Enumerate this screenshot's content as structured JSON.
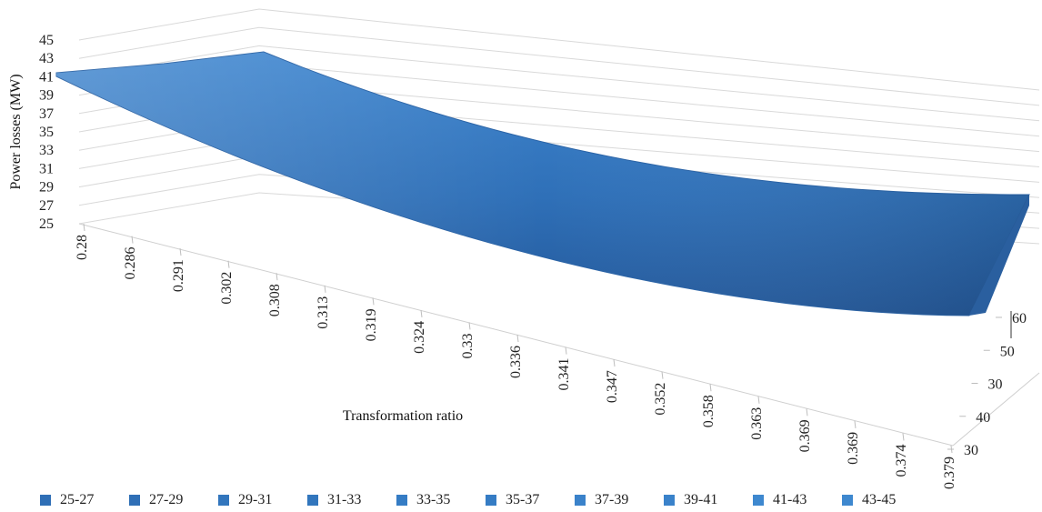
{
  "chart_data": {
    "type": "surface",
    "xlabel": "Transformation ratio",
    "ylabel": "Power losses (MW)",
    "x_ticks": [
      "0.28",
      "0.286",
      "0.291",
      "0.302",
      "0.308",
      "0.313",
      "0.319",
      "0.324",
      "0.33",
      "0.336",
      "0.341",
      "0.347",
      "0.352",
      "0.358",
      "0.363",
      "0.369",
      "0.369",
      "0.374",
      "0.379"
    ],
    "z_ticks": [
      "25",
      "27",
      "29",
      "31",
      "33",
      "35",
      "37",
      "39",
      "41",
      "43",
      "45"
    ],
    "depth_ticks": [
      "30",
      "40",
      "30",
      "50",
      "60"
    ],
    "zlim": [
      25,
      45
    ],
    "surface_front_values": [
      41,
      40.2,
      39.2,
      38.2,
      37.3,
      36.3,
      35.4,
      34.6,
      33.8,
      33.1,
      32.4,
      31.8,
      31.2,
      30.7,
      30.2,
      29.8,
      29.4,
      29.1,
      33.5
    ],
    "legend": [
      "25-27",
      "27-29",
      "29-31",
      "31-33",
      "33-35",
      "35-37",
      "37-39",
      "39-41",
      "41-43",
      "43-45"
    ],
    "legend_colors": [
      "#2f6fb6",
      "#2f6fb6",
      "#3276bd",
      "#3276bd",
      "#357cc4",
      "#357cc4",
      "#3a82ca",
      "#3a82ca",
      "#3e88cf",
      "#3e88cf"
    ],
    "surface_color": "#2e6fb5",
    "grid": true,
    "legend_position": "bottom"
  }
}
